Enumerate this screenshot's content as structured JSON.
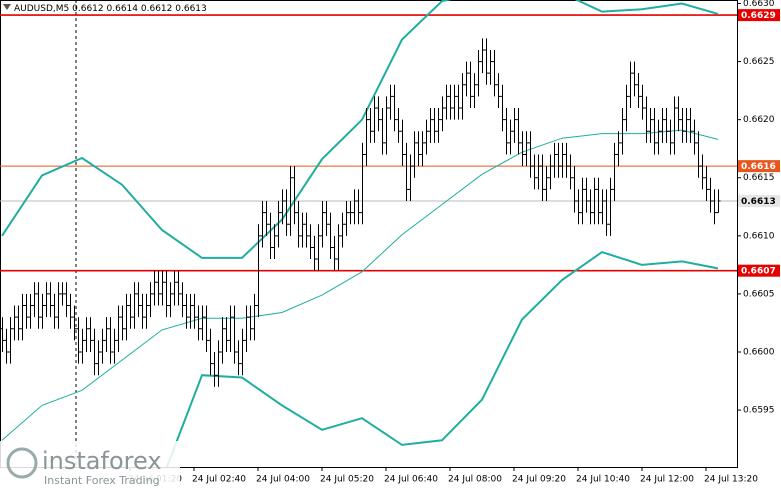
{
  "chart_data": {
    "type": "ohlc",
    "symbol": "AUDUSD,M5",
    "bar_color": "#000000",
    "band_color": "#1fae9f",
    "ylim": [
      0.65901,
      0.66303
    ],
    "yticks": [
      {
        "value": 0.663,
        "label": "0.6630"
      },
      0.6625,
      {
        "value": 0.662,
        "label": "0.6620"
      },
      0.6615,
      {
        "value": 0.661,
        "label": "0.6610"
      },
      0.6605,
      {
        "value": 0.66,
        "label": "0.6600"
      },
      0.6595
    ],
    "xlim": [
      -0.5,
      183.75
    ],
    "xticks": [
      {
        "value": 32,
        "label": "24 Jul 01:20"
      },
      {
        "value": 48,
        "label": "24 Jul 02:40"
      },
      {
        "value": 64,
        "label": "24 Jul 04:00"
      },
      {
        "value": 80,
        "label": "24 Jul 05:20"
      },
      {
        "value": 96,
        "label": "24 Jul 06:40"
      },
      {
        "value": 112,
        "label": "24 Jul 08:00"
      },
      {
        "value": 128,
        "label": "24 Jul 09:20"
      },
      {
        "value": 144,
        "label": "24 Jul 10:40"
      },
      {
        "value": 160,
        "label": "24 Jul 12:00"
      },
      {
        "value": 176,
        "label": "24 Jul 13:20"
      }
    ],
    "open": [
      0.6602,
      0.6601,
      0.66,
      0.6602,
      0.6603,
      0.6602,
      0.6604,
      0.6603,
      0.6604,
      0.6605,
      0.6603,
      0.6604,
      0.6605,
      0.6604,
      0.6603,
      0.6605,
      0.6605,
      0.6604,
      0.6603,
      0.6602,
      0.66,
      0.6601,
      0.6602,
      0.6601,
      0.6599,
      0.66,
      0.6601,
      0.6602,
      0.66,
      0.6601,
      0.6603,
      0.6602,
      0.6604,
      0.6603,
      0.6605,
      0.6604,
      0.6603,
      0.6604,
      0.6605,
      0.6606,
      0.6605,
      0.6606,
      0.6604,
      0.6605,
      0.6606,
      0.6605,
      0.6604,
      0.6603,
      0.6604,
      0.6603,
      0.6602,
      0.6603,
      0.6601,
      0.6599,
      0.6598,
      0.66,
      0.6602,
      0.6601,
      0.6603,
      0.66,
      0.6599,
      0.6601,
      0.6603,
      0.6602,
      0.6604,
      0.661,
      0.6612,
      0.6611,
      0.6609,
      0.661,
      0.6612,
      0.6613,
      0.6611,
      0.6615,
      0.6612,
      0.661,
      0.6611,
      0.661,
      0.6609,
      0.6608,
      0.661,
      0.6612,
      0.6611,
      0.6609,
      0.6608,
      0.661,
      0.6611,
      0.6612,
      0.6612,
      0.6613,
      0.6612,
      0.6617,
      0.662,
      0.6619,
      0.6621,
      0.662,
      0.6618,
      0.6621,
      0.6622,
      0.662,
      0.6619,
      0.6617,
      0.6614,
      0.6616,
      0.6618,
      0.6617,
      0.6618,
      0.6619,
      0.662,
      0.6619,
      0.662,
      0.6621,
      0.6622,
      0.6621,
      0.6622,
      0.6621,
      0.6623,
      0.6624,
      0.6622,
      0.6623,
      0.6625,
      0.6626,
      0.6624,
      0.6625,
      0.6623,
      0.6622,
      0.662,
      0.6618,
      0.6619,
      0.662,
      0.6618,
      0.6617,
      0.6618,
      0.6616,
      0.6615,
      0.6616,
      0.6614,
      0.6615,
      0.6616,
      0.6617,
      0.6616,
      0.6617,
      0.6616,
      0.6615,
      0.6613,
      0.6612,
      0.6614,
      0.6613,
      0.6612,
      0.6614,
      0.6612,
      0.6613,
      0.6611,
      0.6614,
      0.6617,
      0.6618,
      0.662,
      0.6622,
      0.6624,
      0.6623,
      0.6622,
      0.6621,
      0.6619,
      0.662,
      0.6618,
      0.6619,
      0.662,
      0.6619,
      0.6618,
      0.6621,
      0.662,
      0.6619,
      0.662,
      0.6619,
      0.6618,
      0.6616,
      0.6615,
      0.6614,
      0.6613,
      0.6612
    ],
    "high": [
      0.6603,
      0.6602,
      0.6603,
      0.6604,
      0.6604,
      0.6605,
      0.6605,
      0.6605,
      0.6606,
      0.6606,
      0.6605,
      0.6606,
      0.6606,
      0.6605,
      0.6606,
      0.6606,
      0.6606,
      0.6605,
      0.6604,
      0.6603,
      0.6602,
      0.6603,
      0.6603,
      0.6602,
      0.6601,
      0.6602,
      0.6603,
      0.6603,
      0.6602,
      0.6604,
      0.6604,
      0.6605,
      0.6605,
      0.6606,
      0.6606,
      0.6605,
      0.6605,
      0.6606,
      0.6607,
      0.6607,
      0.6607,
      0.6607,
      0.6606,
      0.6607,
      0.6607,
      0.6606,
      0.6605,
      0.6605,
      0.6605,
      0.6604,
      0.6604,
      0.6604,
      0.6602,
      0.66,
      0.6601,
      0.6603,
      0.6603,
      0.6604,
      0.6604,
      0.6601,
      0.6602,
      0.6604,
      0.6604,
      0.6605,
      0.6611,
      0.6613,
      0.6613,
      0.6612,
      0.6611,
      0.6613,
      0.6614,
      0.6614,
      0.6616,
      0.6616,
      0.6613,
      0.6612,
      0.6612,
      0.6611,
      0.661,
      0.6611,
      0.6613,
      0.6613,
      0.6612,
      0.661,
      0.6611,
      0.6612,
      0.6613,
      0.6613,
      0.6614,
      0.6614,
      0.6618,
      0.6621,
      0.6621,
      0.6622,
      0.6622,
      0.6621,
      0.6622,
      0.6623,
      0.6623,
      0.6621,
      0.662,
      0.6618,
      0.6617,
      0.6619,
      0.6619,
      0.6619,
      0.662,
      0.6621,
      0.6621,
      0.6621,
      0.6622,
      0.6623,
      0.6623,
      0.6623,
      0.6623,
      0.6624,
      0.6625,
      0.6625,
      0.6624,
      0.6626,
      0.6627,
      0.6627,
      0.6626,
      0.6626,
      0.6624,
      0.6623,
      0.6621,
      0.662,
      0.6621,
      0.6621,
      0.6619,
      0.6619,
      0.6619,
      0.6617,
      0.6617,
      0.6617,
      0.6616,
      0.6617,
      0.6618,
      0.6618,
      0.6618,
      0.6618,
      0.6617,
      0.6616,
      0.6614,
      0.6615,
      0.6615,
      0.6614,
      0.6615,
      0.6615,
      0.6614,
      0.6614,
      0.6615,
      0.6618,
      0.6619,
      0.6621,
      0.6623,
      0.6625,
      0.6625,
      0.6624,
      0.6623,
      0.6622,
      0.6621,
      0.6621,
      0.662,
      0.6621,
      0.6621,
      0.662,
      0.6622,
      0.6622,
      0.6621,
      0.6621,
      0.6621,
      0.662,
      0.6619,
      0.6617,
      0.6616,
      0.6615,
      0.6614,
      0.6614
    ],
    "low": [
      0.66,
      0.6599,
      0.6599,
      0.6601,
      0.6601,
      0.6601,
      0.6602,
      0.6602,
      0.6603,
      0.6602,
      0.6602,
      0.6603,
      0.6603,
      0.6602,
      0.6602,
      0.6604,
      0.6603,
      0.6602,
      0.6601,
      0.6599,
      0.6599,
      0.66,
      0.66,
      0.6598,
      0.6598,
      0.6599,
      0.66,
      0.6599,
      0.6599,
      0.66,
      0.6601,
      0.6601,
      0.6602,
      0.6602,
      0.6603,
      0.6602,
      0.6602,
      0.6603,
      0.6604,
      0.6604,
      0.6604,
      0.6603,
      0.6603,
      0.6604,
      0.6604,
      0.6603,
      0.6602,
      0.6602,
      0.6602,
      0.6601,
      0.6601,
      0.66,
      0.6598,
      0.6597,
      0.6597,
      0.6599,
      0.66,
      0.66,
      0.6599,
      0.6598,
      0.6598,
      0.66,
      0.6601,
      0.6601,
      0.6603,
      0.6609,
      0.661,
      0.6608,
      0.6608,
      0.6609,
      0.6611,
      0.661,
      0.661,
      0.6611,
      0.6609,
      0.6609,
      0.6609,
      0.6608,
      0.6607,
      0.6607,
      0.6609,
      0.661,
      0.6608,
      0.6607,
      0.6607,
      0.6609,
      0.661,
      0.6611,
      0.6611,
      0.6611,
      0.6611,
      0.6616,
      0.6618,
      0.6618,
      0.6619,
      0.6617,
      0.6617,
      0.662,
      0.6619,
      0.6618,
      0.6616,
      0.6613,
      0.6613,
      0.6615,
      0.6616,
      0.6616,
      0.6617,
      0.6618,
      0.6618,
      0.6618,
      0.6619,
      0.662,
      0.662,
      0.662,
      0.662,
      0.662,
      0.6622,
      0.6621,
      0.6621,
      0.6622,
      0.6624,
      0.6623,
      0.6623,
      0.6622,
      0.6621,
      0.6619,
      0.6617,
      0.6617,
      0.6618,
      0.6617,
      0.6616,
      0.6616,
      0.6615,
      0.6614,
      0.6614,
      0.6613,
      0.6613,
      0.6614,
      0.6615,
      0.6615,
      0.6615,
      0.6615,
      0.6614,
      0.6612,
      0.6611,
      0.6611,
      0.6612,
      0.6611,
      0.6611,
      0.6611,
      0.6611,
      0.661,
      0.661,
      0.6613,
      0.6616,
      0.6617,
      0.6619,
      0.6621,
      0.6622,
      0.6621,
      0.662,
      0.6618,
      0.6618,
      0.6617,
      0.6617,
      0.6618,
      0.6618,
      0.6617,
      0.6617,
      0.6619,
      0.6618,
      0.6618,
      0.6618,
      0.6617,
      0.6615,
      0.6614,
      0.6613,
      0.6612,
      0.6611,
      0.6612
    ],
    "close": [
      0.6601,
      0.66,
      0.6602,
      0.6603,
      0.6602,
      0.6604,
      0.6603,
      0.6604,
      0.6605,
      0.6603,
      0.6604,
      0.6605,
      0.6604,
      0.6603,
      0.6605,
      0.6605,
      0.6604,
      0.6603,
      0.6602,
      0.66,
      0.6601,
      0.6602,
      0.6601,
      0.6599,
      0.66,
      0.6601,
      0.6602,
      0.66,
      0.6601,
      0.6603,
      0.6602,
      0.6604,
      0.6603,
      0.6605,
      0.6604,
      0.6603,
      0.6604,
      0.6605,
      0.6606,
      0.6605,
      0.6606,
      0.6604,
      0.6605,
      0.6606,
      0.6605,
      0.6604,
      0.6603,
      0.6604,
      0.6603,
      0.6602,
      0.6603,
      0.6601,
      0.6599,
      0.6598,
      0.66,
      0.6602,
      0.6601,
      0.6603,
      0.66,
      0.6599,
      0.6601,
      0.6603,
      0.6602,
      0.6604,
      0.661,
      0.6612,
      0.6611,
      0.6609,
      0.661,
      0.6612,
      0.6613,
      0.6611,
      0.6615,
      0.6612,
      0.661,
      0.6611,
      0.661,
      0.6609,
      0.6608,
      0.661,
      0.6612,
      0.6611,
      0.6609,
      0.6608,
      0.661,
      0.6611,
      0.6612,
      0.6612,
      0.6613,
      0.6612,
      0.6617,
      0.662,
      0.6619,
      0.6621,
      0.662,
      0.6618,
      0.6621,
      0.6622,
      0.662,
      0.6619,
      0.6617,
      0.6614,
      0.6616,
      0.6618,
      0.6617,
      0.6618,
      0.6619,
      0.662,
      0.6619,
      0.662,
      0.6621,
      0.6622,
      0.6621,
      0.6622,
      0.6621,
      0.6623,
      0.6624,
      0.6622,
      0.6623,
      0.6625,
      0.6626,
      0.6624,
      0.6625,
      0.6623,
      0.6622,
      0.662,
      0.6618,
      0.6619,
      0.662,
      0.6618,
      0.6617,
      0.6618,
      0.6616,
      0.6615,
      0.6616,
      0.6614,
      0.6615,
      0.6616,
      0.6617,
      0.6616,
      0.6617,
      0.6616,
      0.6615,
      0.6613,
      0.6612,
      0.6614,
      0.6613,
      0.6612,
      0.6614,
      0.6612,
      0.6613,
      0.6611,
      0.6614,
      0.6617,
      0.6618,
      0.662,
      0.6622,
      0.6624,
      0.6623,
      0.6622,
      0.6621,
      0.6619,
      0.662,
      0.6618,
      0.6619,
      0.662,
      0.6619,
      0.6618,
      0.6621,
      0.662,
      0.6619,
      0.662,
      0.6619,
      0.6618,
      0.6616,
      0.6615,
      0.6614,
      0.6613,
      0.6612,
      0.6613
    ],
    "bands": {
      "x": [
        0,
        10,
        20,
        30,
        40,
        50,
        60,
        70,
        80,
        90,
        100,
        110,
        120,
        130,
        140,
        150,
        160,
        170,
        179
      ],
      "upper": [
        0.661,
        0.66152,
        0.66167,
        0.66144,
        0.66105,
        0.66081,
        0.66081,
        0.66114,
        0.66166,
        0.662,
        0.66269,
        0.66302,
        0.6631,
        0.66312,
        0.66309,
        0.66293,
        0.66295,
        0.663,
        0.66291
      ],
      "middle": [
        0.65924,
        0.65954,
        0.65967,
        0.65993,
        0.66019,
        0.66029,
        0.66029,
        0.66034,
        0.66049,
        0.66069,
        0.66101,
        0.66127,
        0.66153,
        0.66172,
        0.66184,
        0.66188,
        0.66188,
        0.66191,
        0.66183
      ],
      "lower": [
        null,
        null,
        null,
        null,
        0.6589,
        0.6598,
        0.65978,
        0.65954,
        0.65933,
        0.65943,
        0.6592,
        0.65924,
        0.65959,
        0.66028,
        0.66062,
        0.66086,
        0.66075,
        0.66078,
        0.66072
      ]
    },
    "levels": [
      {
        "value": 0.6629,
        "color": "#e60000"
      },
      {
        "value": 0.6616,
        "color": "#e8561e"
      },
      {
        "value": 0.6607,
        "color": "#e60000"
      }
    ],
    "watermark": {
      "brand": "instaforex",
      "tagline": "Instant Forex Trading"
    }
  }
}
